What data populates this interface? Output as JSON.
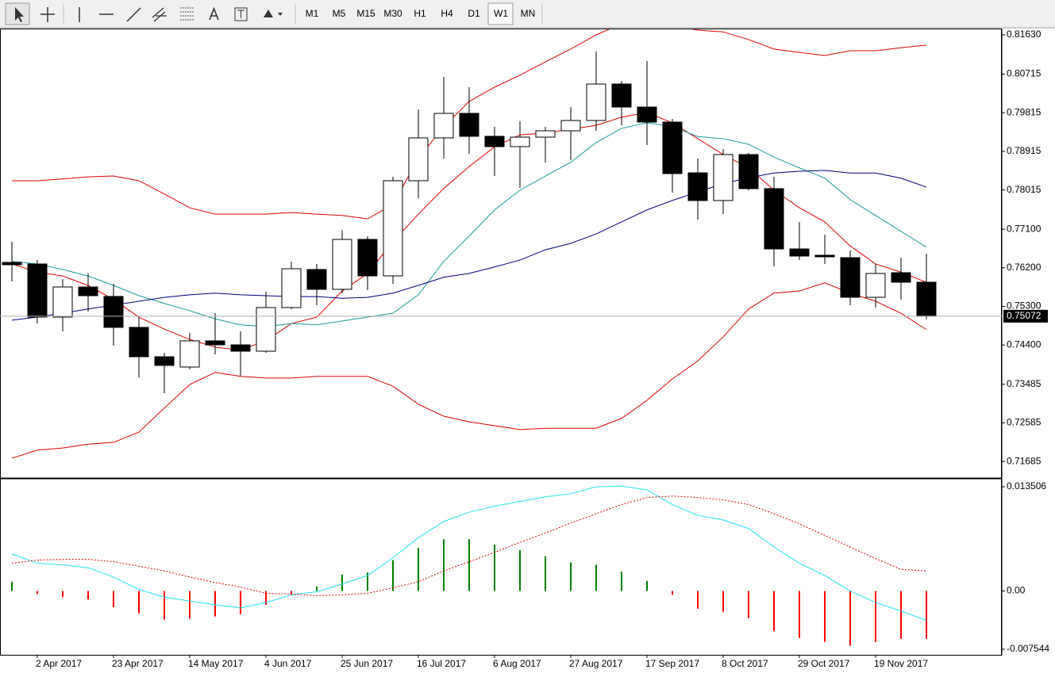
{
  "toolbar": {
    "timeframes": [
      "M1",
      "M5",
      "M15",
      "M30",
      "H1",
      "H4",
      "D1",
      "W1",
      "MN"
    ],
    "active_timeframe": "W1"
  },
  "chart_data": [
    {
      "type": "candlestick",
      "categories": [
        null,
        "2 Apr 2017",
        null,
        null,
        "23 Apr 2017",
        null,
        null,
        "14 May 2017",
        null,
        null,
        "4 Jun 2017",
        null,
        null,
        "25 Jun 2017",
        null,
        null,
        "16 Jul 2017",
        null,
        null,
        "6 Aug 2017",
        null,
        null,
        "27 Aug 2017",
        null,
        null,
        "17 Sep 2017",
        null,
        null,
        "8 Oct 2017",
        null,
        null,
        "29 Oct 2017",
        null,
        null,
        "19 Nov 2017",
        null,
        null
      ],
      "open": [
        0.76326,
        0.76289,
        0.75051,
        0.75753,
        0.75532,
        0.74811,
        0.74127,
        0.73887,
        0.74497,
        0.74404,
        0.74256,
        0.75273,
        0.7616,
        0.75698,
        0.76862,
        0.76012,
        0.7823,
        0.79228,
        0.798,
        0.79265,
        0.79024,
        0.79246,
        0.79394,
        0.79634,
        0.80484,
        0.79948,
        0.79597,
        0.78414,
        0.77768,
        0.7884,
        0.78045,
        0.7664,
        0.76493,
        0.76437,
        0.75513,
        0.76086,
        0.75864
      ],
      "high": [
        0.76807,
        0.76382,
        0.75938,
        0.76068,
        0.75827,
        0.75051,
        0.7422,
        0.74682,
        0.75144,
        0.74718,
        0.75642,
        0.76345,
        0.76289,
        0.77084,
        0.76936,
        0.78322,
        0.79893,
        0.80651,
        0.8041,
        0.79486,
        0.79616,
        0.79486,
        0.79948,
        0.81242,
        0.80558,
        0.8102,
        0.79671,
        0.78747,
        0.78969,
        0.78876,
        0.78322,
        0.77269,
        0.76973,
        0.76603,
        0.76289,
        0.76437,
        0.7653
      ],
      "low": [
        0.75883,
        0.74903,
        0.74718,
        0.7518,
        0.74386,
        0.73647,
        0.73277,
        0.73831,
        0.74183,
        0.73684,
        0.7422,
        0.75236,
        0.75328,
        0.75606,
        0.75679,
        0.75827,
        0.77823,
        0.78747,
        0.78858,
        0.78341,
        0.78063,
        0.78655,
        0.7871,
        0.79394,
        0.79523,
        0.79061,
        0.77952,
        0.77324,
        0.77454,
        0.78008,
        0.76234,
        0.76382,
        0.76289,
        0.75328,
        0.75273,
        0.75458,
        0.74996
      ],
      "close": [
        0.76271,
        0.75051,
        0.75753,
        0.7555,
        0.74811,
        0.74127,
        0.73924,
        0.74497,
        0.74404,
        0.74256,
        0.75273,
        0.76178,
        0.75698,
        0.76862,
        0.76012,
        0.7823,
        0.79228,
        0.798,
        0.79265,
        0.79024,
        0.79246,
        0.79394,
        0.79634,
        0.80484,
        0.79948,
        0.79597,
        0.78396,
        0.77768,
        0.7884,
        0.78045,
        0.7664,
        0.76474,
        0.76456,
        0.75513,
        0.76068,
        0.75864,
        0.75072
      ],
      "up_color": "#ffffff",
      "down_color": "#000000",
      "series": [
        {
          "color": "#e00000",
          "values": [
            0.7823,
            0.7823,
            0.7827,
            0.7832,
            0.7834,
            0.7823,
            0.7792,
            0.776,
            0.7745,
            0.7745,
            0.7745,
            0.7749,
            0.7745,
            0.7742,
            0.7734,
            0.7768,
            0.7875,
            0.7949,
            0.8008,
            0.8041,
            0.8069,
            0.81,
            0.813,
            0.8163,
            0.8189,
            0.8193,
            0.8185,
            0.8174,
            0.817,
            0.8152,
            0.813,
            0.8122,
            0.8115,
            0.8126,
            0.8126,
            0.8133,
            0.8139
          ]
        },
        {
          "color": "#e00000",
          "values": [
            0.7629,
            0.761,
            0.7601,
            0.7579,
            0.7546,
            0.7505,
            0.7477,
            0.7453,
            0.7435,
            0.7428,
            0.745,
            0.749,
            0.7505,
            0.7566,
            0.7607,
            0.7681,
            0.7745,
            0.7805,
            0.7856,
            0.7902,
            0.793,
            0.7934,
            0.7943,
            0.7952,
            0.7971,
            0.7982,
            0.7958,
            0.7921,
            0.7884,
            0.7853,
            0.7801,
            0.776,
            0.7727,
            0.7671,
            0.7629,
            0.761,
            0.7586
          ]
        },
        {
          "color": "#e00000",
          "values": [
            0.7176,
            0.7195,
            0.72,
            0.7209,
            0.7213,
            0.7237,
            0.7293,
            0.7348,
            0.7376,
            0.7367,
            0.7363,
            0.7363,
            0.7367,
            0.7367,
            0.7367,
            0.7344,
            0.7302,
            0.7274,
            0.7261,
            0.7252,
            0.7243,
            0.7246,
            0.7246,
            0.7246,
            0.7269,
            0.7311,
            0.7361,
            0.7403,
            0.7459,
            0.7524,
            0.7561,
            0.7566,
            0.7585,
            0.7561,
            0.7542,
            0.7514,
            0.7476
          ]
        },
        {
          "color": "#1a9a9a",
          "values": [
            0.7635,
            0.7629,
            0.7616,
            0.7601,
            0.7579,
            0.7555,
            0.7537,
            0.752,
            0.7501,
            0.7487,
            0.7483,
            0.749,
            0.7487,
            0.7496,
            0.7505,
            0.7514,
            0.7557,
            0.7635,
            0.7694,
            0.7755,
            0.7801,
            0.7834,
            0.7866,
            0.7912,
            0.7945,
            0.7958,
            0.7949,
            0.7926,
            0.7921,
            0.7908,
            0.7878,
            0.7853,
            0.7829,
            0.7779,
            0.7742,
            0.7705,
            0.7668
          ]
        },
        {
          "color": "#000080",
          "values": [
            0.7498,
            0.7505,
            0.7514,
            0.7524,
            0.7533,
            0.7542,
            0.7551,
            0.7557,
            0.7561,
            0.7557,
            0.7555,
            0.7553,
            0.7553,
            0.7549,
            0.7551,
            0.7561,
            0.7579,
            0.7598,
            0.7607,
            0.7622,
            0.7638,
            0.7662,
            0.7677,
            0.7699,
            0.7727,
            0.7755,
            0.7777,
            0.7797,
            0.7816,
            0.783,
            0.7841,
            0.7845,
            0.7847,
            0.7841,
            0.7841,
            0.7829,
            0.7808
          ]
        }
      ],
      "ylim": [
        0.71318,
        0.81759
      ],
      "yticks": [
        {
          "value": 0.8163,
          "label": "0.81630"
        },
        0.80715,
        0.79815,
        0.78915,
        0.78015,
        {
          "value": 0.771,
          "label": "0.77100"
        },
        {
          "value": 0.762,
          "label": "0.76200"
        },
        {
          "value": 0.753,
          "label": "0.75300"
        },
        {
          "value": 0.744,
          "label": "0.74400"
        },
        0.73485,
        0.72585,
        0.71685
      ],
      "current_price": 0.75072,
      "grid": false
    },
    {
      "type": "macd",
      "histogram": {
        "up_color": "#008000",
        "down_color": "#ff0000",
        "values": [
          0.0012,
          -0.0004,
          -0.0008,
          -0.0011,
          -0.0021,
          -0.0029,
          -0.0037,
          -0.0036,
          -0.0033,
          -0.003,
          -0.0018,
          -0.0005,
          0.0006,
          0.0021,
          0.0024,
          0.004,
          0.0056,
          0.0067,
          0.0067,
          0.006,
          0.0053,
          0.0045,
          0.0037,
          0.0034,
          0.0025,
          0.0013,
          -0.0005,
          -0.0023,
          -0.0027,
          -0.0035,
          -0.0052,
          -0.0061,
          -0.0066,
          -0.0071,
          -0.0066,
          -0.0062,
          -0.0062
        ]
      },
      "series": [
        {
          "color": "#22e0f0",
          "style": "solid",
          "values": [
            0.0048,
            0.0036,
            0.0034,
            0.003,
            0.0018,
            0.0002,
            -0.0008,
            -0.0013,
            -0.0018,
            -0.0022,
            -0.0015,
            -0.0005,
            -0.0001,
            0.0009,
            0.002,
            0.0043,
            0.0069,
            0.009,
            0.0102,
            0.011,
            0.0116,
            0.0122,
            0.0126,
            0.0135,
            0.0136,
            0.0131,
            0.0112,
            0.0098,
            0.0092,
            0.0081,
            0.0057,
            0.0036,
            0.002,
            0,
            -0.0015,
            -0.0026,
            -0.0038
          ]
        },
        {
          "color": "#e00000",
          "style": "dotted",
          "values": [
            0.0036,
            0.004,
            0.0041,
            0.0041,
            0.0038,
            0.0032,
            0.0026,
            0.0018,
            0.0011,
            0.0005,
            -0.0003,
            -0.0004,
            -0.0006,
            -0.0005,
            -0.0003,
            0.0004,
            0.0012,
            0.0026,
            0.0038,
            0.005,
            0.0063,
            0.0075,
            0.0088,
            0.01,
            0.0112,
            0.0121,
            0.0123,
            0.0121,
            0.0118,
            0.0112,
            0.01,
            0.0087,
            0.0072,
            0.0057,
            0.0042,
            0.0028,
            0.0026
          ]
        }
      ],
      "ylim": [
        -0.00827,
        0.01443
      ],
      "yticks": [
        0.013506,
        {
          "value": 0,
          "label": "0.00"
        },
        -0.007544
      ],
      "grid": false
    }
  ]
}
